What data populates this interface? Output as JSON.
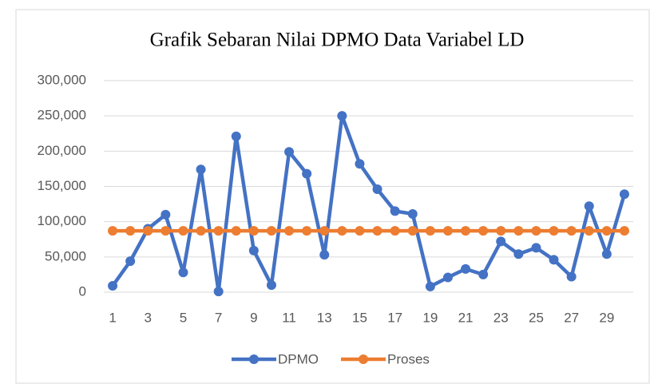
{
  "chart_data": {
    "type": "line",
    "title": "Grafik Sebaran Nilai DPMO Data Variabel LD",
    "categories": [
      1,
      null,
      3,
      null,
      5,
      null,
      7,
      null,
      9,
      null,
      11,
      null,
      13,
      null,
      15,
      null,
      17,
      null,
      19,
      null,
      21,
      null,
      23,
      null,
      25,
      null,
      27,
      null,
      29,
      null
    ],
    "series": [
      {
        "name": "DPMO",
        "color": "#4472c4",
        "values": [
          9000,
          44000,
          90000,
          110000,
          28000,
          174000,
          1000,
          221000,
          59000,
          10000,
          199000,
          168000,
          53000,
          250000,
          182000,
          146000,
          115000,
          111000,
          8000,
          21000,
          33000,
          25000,
          72000,
          54000,
          63000,
          46000,
          22000,
          122000,
          54000,
          139000
        ]
      },
      {
        "name": "Proses",
        "color": "#ed7d31",
        "values": [
          87000,
          87000,
          87000,
          87000,
          87000,
          87000,
          87000,
          87000,
          87000,
          87000,
          87000,
          87000,
          87000,
          87000,
          87000,
          87000,
          87000,
          87000,
          87000,
          87000,
          87000,
          87000,
          87000,
          87000,
          87000,
          87000,
          87000,
          87000,
          87000,
          87000
        ]
      }
    ],
    "ylim": [
      0,
      300000
    ],
    "yticks": [
      0,
      {
        "value": 50000,
        "label": "50,000"
      },
      {
        "value": 100000,
        "label": "100,000"
      },
      {
        "value": 150000,
        "label": "150,000"
      },
      {
        "value": 200000,
        "label": "200,000"
      },
      {
        "value": 250000,
        "label": "250,000"
      },
      {
        "value": 300000,
        "label": "300,000"
      }
    ],
    "grid": true,
    "legend": "bottom"
  }
}
